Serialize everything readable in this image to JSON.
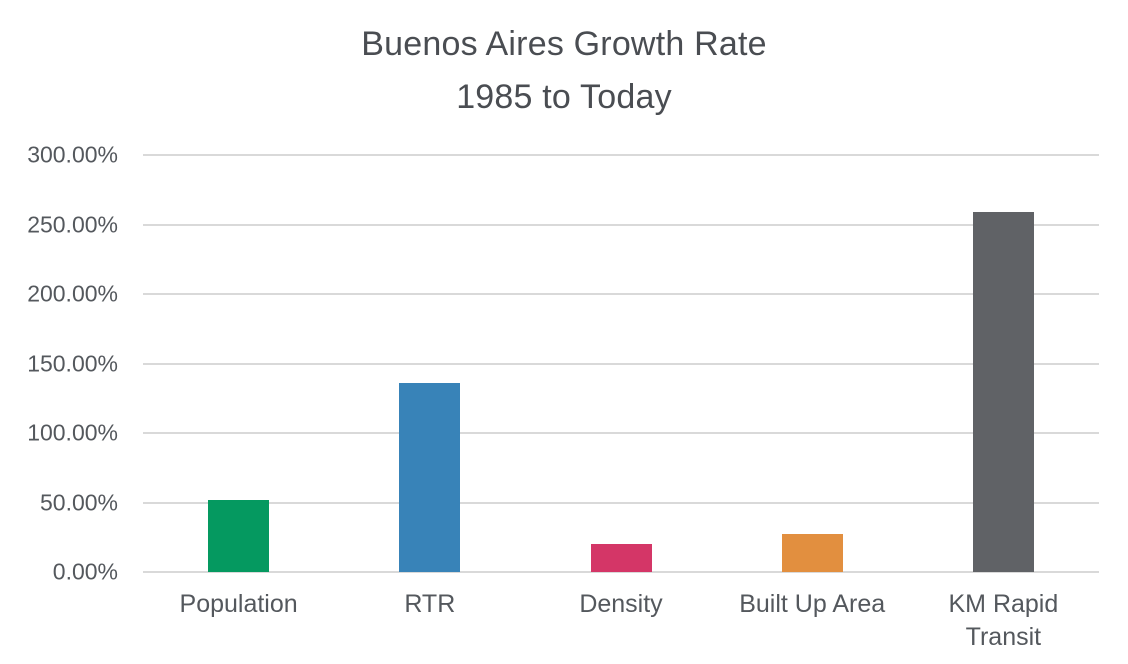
{
  "chart_data": {
    "type": "bar",
    "title_line1": "Buenos Aires Growth Rate",
    "title_line2": "1985 to Today",
    "categories": [
      "Population",
      "RTR",
      "Density",
      "Built Up Area",
      "KM Rapid Transit"
    ],
    "values": [
      52,
      136,
      20,
      27,
      259
    ],
    "unit": "%",
    "bar_colors": [
      "#059960",
      "#3883b8",
      "#d43667",
      "#e28f3f",
      "#606266"
    ],
    "ylim": [
      0,
      300
    ],
    "yticks": [
      {
        "value": 300,
        "label": "300.00%"
      },
      {
        "value": 250,
        "label": "250.00%"
      },
      {
        "value": 200,
        "label": "200.00%"
      },
      {
        "value": 150,
        "label": "150.00%"
      },
      {
        "value": 100,
        "label": "100.00%"
      },
      {
        "value": 50,
        "label": "50.00%"
      },
      {
        "value": 0,
        "label": "0.00%"
      }
    ],
    "grid": true,
    "legend": "none",
    "colors": {
      "background": "#ffffff",
      "title_text": "#4a4d52",
      "axis_text": "#54585d",
      "gridline": "#d9d9d9"
    }
  }
}
